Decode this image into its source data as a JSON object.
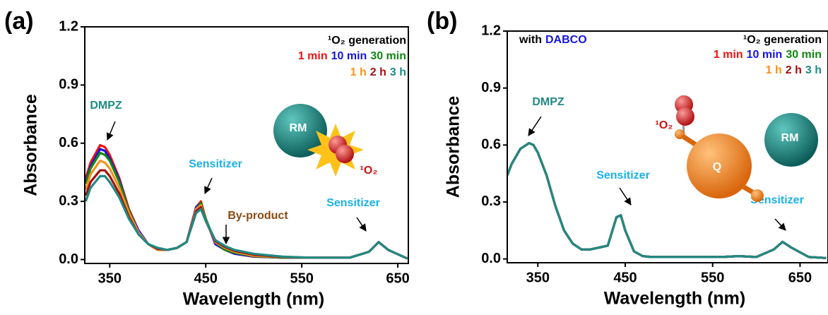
{
  "chart_data": [
    {
      "type": "line",
      "panel_label": "(a)",
      "x_label": "Wavelength (nm)",
      "y_label": "Absorbance",
      "xlim": [
        324,
        661
      ],
      "ylim": [
        -0.02,
        1.2
      ],
      "xticks": [
        350,
        450,
        550,
        650
      ],
      "yticks": [
        {
          "value": 0,
          "label": "0.0"
        },
        0.3,
        0.6,
        0.9,
        1.2
      ],
      "legend_title": "¹O₂ generation",
      "x": [
        325,
        330,
        340,
        345,
        350,
        360,
        370,
        380,
        390,
        400,
        410,
        420,
        430,
        440,
        445,
        450,
        460,
        470,
        480,
        500,
        530,
        560,
        580,
        600,
        620,
        630,
        640,
        660
      ],
      "series": [
        {
          "name": "1 min",
          "color": "#ee1111",
          "values": [
            0.42,
            0.5,
            0.59,
            0.58,
            0.54,
            0.42,
            0.26,
            0.15,
            0.08,
            0.05,
            0.05,
            0.06,
            0.09,
            0.27,
            0.3,
            0.21,
            0.08,
            0.05,
            0.03,
            0.015,
            0.01,
            0.01,
            0.01,
            0.01,
            0.04,
            0.09,
            0.05,
            0.005
          ]
        },
        {
          "name": "10 min",
          "color": "#1515e0",
          "values": [
            0.4,
            0.48,
            0.57,
            0.56,
            0.52,
            0.41,
            0.25,
            0.15,
            0.08,
            0.05,
            0.05,
            0.06,
            0.09,
            0.27,
            0.29,
            0.21,
            0.08,
            0.05,
            0.03,
            0.016,
            0.01,
            0.01,
            0.01,
            0.01,
            0.04,
            0.09,
            0.05,
            0.005
          ]
        },
        {
          "name": "30 min",
          "color": "#118811",
          "values": [
            0.39,
            0.47,
            0.55,
            0.54,
            0.51,
            0.4,
            0.25,
            0.14,
            0.08,
            0.05,
            0.05,
            0.06,
            0.09,
            0.26,
            0.29,
            0.21,
            0.09,
            0.05,
            0.035,
            0.018,
            0.01,
            0.01,
            0.01,
            0.01,
            0.04,
            0.09,
            0.05,
            0.005
          ]
        },
        {
          "name": "1 h",
          "color": "#f5921e",
          "values": [
            0.36,
            0.44,
            0.51,
            0.5,
            0.47,
            0.37,
            0.24,
            0.14,
            0.08,
            0.05,
            0.05,
            0.06,
            0.09,
            0.26,
            0.28,
            0.2,
            0.09,
            0.06,
            0.04,
            0.02,
            0.012,
            0.01,
            0.01,
            0.01,
            0.04,
            0.09,
            0.05,
            0.005
          ]
        },
        {
          "name": "2 h",
          "color": "#a50f0f",
          "values": [
            0.33,
            0.4,
            0.46,
            0.46,
            0.43,
            0.34,
            0.22,
            0.13,
            0.08,
            0.055,
            0.05,
            0.06,
            0.09,
            0.25,
            0.27,
            0.2,
            0.095,
            0.065,
            0.045,
            0.025,
            0.013,
            0.01,
            0.01,
            0.01,
            0.04,
            0.09,
            0.05,
            0.005
          ]
        },
        {
          "name": "3 h",
          "color": "#1f8a84",
          "values": [
            0.3,
            0.37,
            0.43,
            0.43,
            0.4,
            0.32,
            0.21,
            0.13,
            0.08,
            0.06,
            0.05,
            0.06,
            0.09,
            0.24,
            0.26,
            0.2,
            0.1,
            0.07,
            0.05,
            0.03,
            0.015,
            0.01,
            0.01,
            0.01,
            0.04,
            0.09,
            0.05,
            0.005
          ]
        }
      ],
      "annotations": [
        {
          "text": "DMPZ",
          "color": "#1f8a84"
        },
        {
          "text": "Sensitizer",
          "color": "#1ab0e6"
        },
        {
          "text": "By-product",
          "color": "#8b4a12"
        },
        {
          "text": "Sensitizer",
          "color": "#1ab0e6"
        }
      ],
      "illustration_labels": [
        "RM",
        "¹O₂"
      ]
    },
    {
      "type": "line",
      "panel_label": "(b)",
      "x_label": "Wavelength (nm)",
      "y_label": "Absorbance",
      "xlim": [
        315,
        682
      ],
      "ylim": [
        -0.02,
        1.2
      ],
      "xticks": [
        350,
        450,
        550,
        650
      ],
      "yticks": [
        {
          "value": 0,
          "label": "0.0"
        },
        0.3,
        0.6,
        0.9,
        1.2
      ],
      "legend_title": "¹O₂ generation",
      "note": {
        "text": "with",
        "highlight": "DABCO"
      },
      "x": [
        315,
        320,
        330,
        340,
        345,
        350,
        360,
        370,
        380,
        390,
        400,
        410,
        420,
        430,
        440,
        445,
        450,
        460,
        470,
        480,
        500,
        530,
        560,
        580,
        600,
        620,
        630,
        640,
        660,
        680
      ],
      "series": [
        {
          "name": "1 min",
          "color": "#ee1111",
          "values": [
            0.44,
            0.5,
            0.58,
            0.61,
            0.6,
            0.56,
            0.44,
            0.28,
            0.15,
            0.08,
            0.05,
            0.05,
            0.06,
            0.07,
            0.22,
            0.23,
            0.15,
            0.04,
            0.015,
            0.01,
            0.01,
            0.01,
            0.01,
            0.015,
            0.01,
            0.05,
            0.09,
            0.06,
            0.01,
            0.005
          ]
        },
        {
          "name": "10 min",
          "color": "#1515e0",
          "values": [
            0.44,
            0.5,
            0.58,
            0.61,
            0.6,
            0.56,
            0.44,
            0.28,
            0.15,
            0.08,
            0.05,
            0.05,
            0.06,
            0.07,
            0.22,
            0.23,
            0.15,
            0.04,
            0.015,
            0.01,
            0.01,
            0.01,
            0.01,
            0.015,
            0.01,
            0.05,
            0.09,
            0.06,
            0.01,
            0.005
          ]
        },
        {
          "name": "30 min",
          "color": "#118811",
          "values": [
            0.44,
            0.5,
            0.58,
            0.61,
            0.6,
            0.56,
            0.44,
            0.28,
            0.15,
            0.08,
            0.05,
            0.05,
            0.06,
            0.07,
            0.22,
            0.23,
            0.15,
            0.04,
            0.015,
            0.01,
            0.01,
            0.01,
            0.01,
            0.015,
            0.01,
            0.05,
            0.09,
            0.06,
            0.01,
            0.005
          ]
        },
        {
          "name": "1 h",
          "color": "#f5921e",
          "values": [
            0.44,
            0.5,
            0.58,
            0.61,
            0.6,
            0.56,
            0.44,
            0.28,
            0.15,
            0.08,
            0.05,
            0.05,
            0.06,
            0.07,
            0.22,
            0.23,
            0.15,
            0.04,
            0.015,
            0.01,
            0.01,
            0.01,
            0.01,
            0.015,
            0.01,
            0.05,
            0.09,
            0.06,
            0.01,
            0.005
          ]
        },
        {
          "name": "2 h",
          "color": "#a50f0f",
          "values": [
            0.44,
            0.5,
            0.58,
            0.61,
            0.6,
            0.56,
            0.44,
            0.28,
            0.15,
            0.08,
            0.05,
            0.05,
            0.06,
            0.07,
            0.22,
            0.23,
            0.15,
            0.04,
            0.015,
            0.01,
            0.01,
            0.01,
            0.01,
            0.015,
            0.01,
            0.05,
            0.09,
            0.06,
            0.01,
            0.005
          ]
        },
        {
          "name": "3 h",
          "color": "#1f8a84",
          "values": [
            0.44,
            0.5,
            0.58,
            0.61,
            0.6,
            0.56,
            0.44,
            0.28,
            0.15,
            0.08,
            0.05,
            0.05,
            0.06,
            0.07,
            0.22,
            0.23,
            0.15,
            0.04,
            0.015,
            0.01,
            0.01,
            0.01,
            0.01,
            0.015,
            0.01,
            0.05,
            0.09,
            0.06,
            0.01,
            0.005
          ]
        }
      ],
      "annotations": [
        {
          "text": "DMPZ",
          "color": "#1f8a84"
        },
        {
          "text": "Sensitizer",
          "color": "#1ab0e6"
        },
        {
          "text": "Sensitizer",
          "color": "#1ab0e6"
        }
      ],
      "illustration_labels": [
        "¹O₂",
        "Q",
        "RM"
      ]
    }
  ]
}
